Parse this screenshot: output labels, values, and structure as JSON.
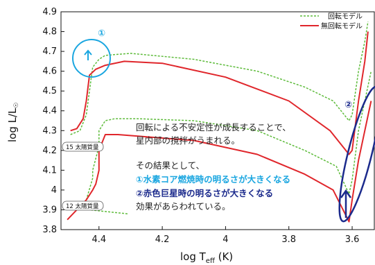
{
  "chart_data": {
    "type": "line",
    "xlabel_main": "log T",
    "xlabel_sub": "eff",
    "xlabel_unit": " (K)",
    "ylabel_main": "log L/L",
    "ylabel_sub": "☉",
    "xlim": [
      4.52,
      3.53
    ],
    "ylim": [
      3.8,
      4.9
    ],
    "x_ticks": [
      {
        "value": 4.4,
        "label": "4.4"
      },
      {
        "value": 4.2,
        "label": "4.2"
      },
      {
        "value": 4.0,
        "label": "4"
      },
      {
        "value": 3.8,
        "label": "3.8"
      },
      {
        "value": 3.6,
        "label": "3.6"
      }
    ],
    "y_ticks": [
      {
        "value": 3.8,
        "label": "3.8"
      },
      {
        "value": 3.9,
        "label": "3.9"
      },
      {
        "value": 4.0,
        "label": "4"
      },
      {
        "value": 4.1,
        "label": "4.1"
      },
      {
        "value": 4.2,
        "label": "4.2"
      },
      {
        "value": 4.3,
        "label": "4.3"
      },
      {
        "value": 4.4,
        "label": "4.4"
      },
      {
        "value": 4.5,
        "label": "4.5"
      },
      {
        "value": 4.6,
        "label": "4.6"
      },
      {
        "value": 4.7,
        "label": "4.7"
      },
      {
        "value": 4.8,
        "label": "4.8"
      },
      {
        "value": 4.9,
        "label": "4.9"
      }
    ],
    "legend_position": "top-right",
    "series": [
      {
        "name": "回転モデル",
        "color": "#5dbb3a",
        "dashed": true,
        "points": [
          [
            4.31,
            3.88
          ],
          [
            4.43,
            3.9
          ],
          [
            4.44,
            3.95
          ],
          [
            4.42,
            4.06
          ],
          [
            4.42,
            4.1
          ],
          [
            4.4,
            4.22
          ],
          [
            4.4,
            4.3
          ],
          [
            4.38,
            4.35
          ],
          [
            4.35,
            4.36
          ],
          [
            4.28,
            4.36
          ],
          [
            4.1,
            4.35
          ],
          [
            3.9,
            4.3
          ],
          [
            3.75,
            4.2
          ],
          [
            3.65,
            4.12
          ],
          [
            3.61,
            3.98
          ],
          [
            3.6,
            4.05
          ],
          [
            3.58,
            4.3
          ],
          [
            3.56,
            4.45
          ],
          [
            3.54,
            4.6
          ]
        ]
      },
      {
        "name": "回転モデル",
        "color": "#5dbb3a",
        "dashed": true,
        "points": [
          [
            4.49,
            4.28
          ],
          [
            4.46,
            4.3
          ],
          [
            4.44,
            4.38
          ],
          [
            4.43,
            4.5
          ],
          [
            4.42,
            4.62
          ],
          [
            4.4,
            4.66
          ],
          [
            4.38,
            4.68
          ],
          [
            4.3,
            4.69
          ],
          [
            4.1,
            4.66
          ],
          [
            3.9,
            4.6
          ],
          [
            3.75,
            4.52
          ],
          [
            3.66,
            4.45
          ],
          [
            3.61,
            4.35
          ],
          [
            3.6,
            4.38
          ],
          [
            3.58,
            4.6
          ],
          [
            3.56,
            4.75
          ],
          [
            3.55,
            4.85
          ]
        ]
      },
      {
        "name": "無回転モデル",
        "color": "#e0262b",
        "dashed": false,
        "points": [
          [
            4.5,
            3.85
          ],
          [
            4.44,
            3.95
          ],
          [
            4.42,
            4.0
          ],
          [
            4.41,
            4.03
          ],
          [
            4.4,
            4.1
          ],
          [
            4.4,
            4.2
          ],
          [
            4.38,
            4.28
          ],
          [
            4.34,
            4.28
          ],
          [
            4.1,
            4.25
          ],
          [
            3.9,
            4.18
          ],
          [
            3.75,
            4.08
          ],
          [
            3.66,
            4.0
          ],
          [
            3.61,
            3.84
          ],
          [
            3.6,
            3.95
          ],
          [
            3.58,
            4.15
          ],
          [
            3.56,
            4.3
          ],
          [
            3.54,
            4.45
          ]
        ]
      },
      {
        "name": "無回転モデル",
        "color": "#e0262b",
        "dashed": false,
        "points": [
          [
            4.49,
            4.3
          ],
          [
            4.47,
            4.31
          ],
          [
            4.45,
            4.36
          ],
          [
            4.44,
            4.45
          ],
          [
            4.43,
            4.58
          ],
          [
            4.41,
            4.61
          ],
          [
            4.38,
            4.63
          ],
          [
            4.32,
            4.65
          ],
          [
            4.2,
            4.64
          ],
          [
            4.0,
            4.57
          ],
          [
            3.8,
            4.45
          ],
          [
            3.67,
            4.3
          ],
          [
            3.61,
            4.18
          ],
          [
            3.6,
            4.2
          ],
          [
            3.58,
            4.45
          ],
          [
            3.56,
            4.65
          ],
          [
            3.55,
            4.8
          ]
        ]
      }
    ]
  },
  "legend": {
    "rotating": "回転モデル",
    "nonrotating": "無回転モデル"
  },
  "mass_labels": {
    "m15": "15 太陽質量",
    "m12": "12 太陽質量"
  },
  "annotations": {
    "line1": "回転による不安定性が成長することで、",
    "line2": "星内部の撹拌がうまれる。",
    "line3": "その結果として、",
    "line4": "①水素コア燃焼時の明るさが大きくなる",
    "line5": "②赤色巨星時の明るさが大きくなる",
    "line6": "効果があらわれている。"
  },
  "markers": {
    "one": "①",
    "two": "②"
  },
  "colors": {
    "cyan": "#1aa6e0",
    "navy": "#1b2a8c",
    "green": "#5dbb3a",
    "red": "#e0262b"
  }
}
